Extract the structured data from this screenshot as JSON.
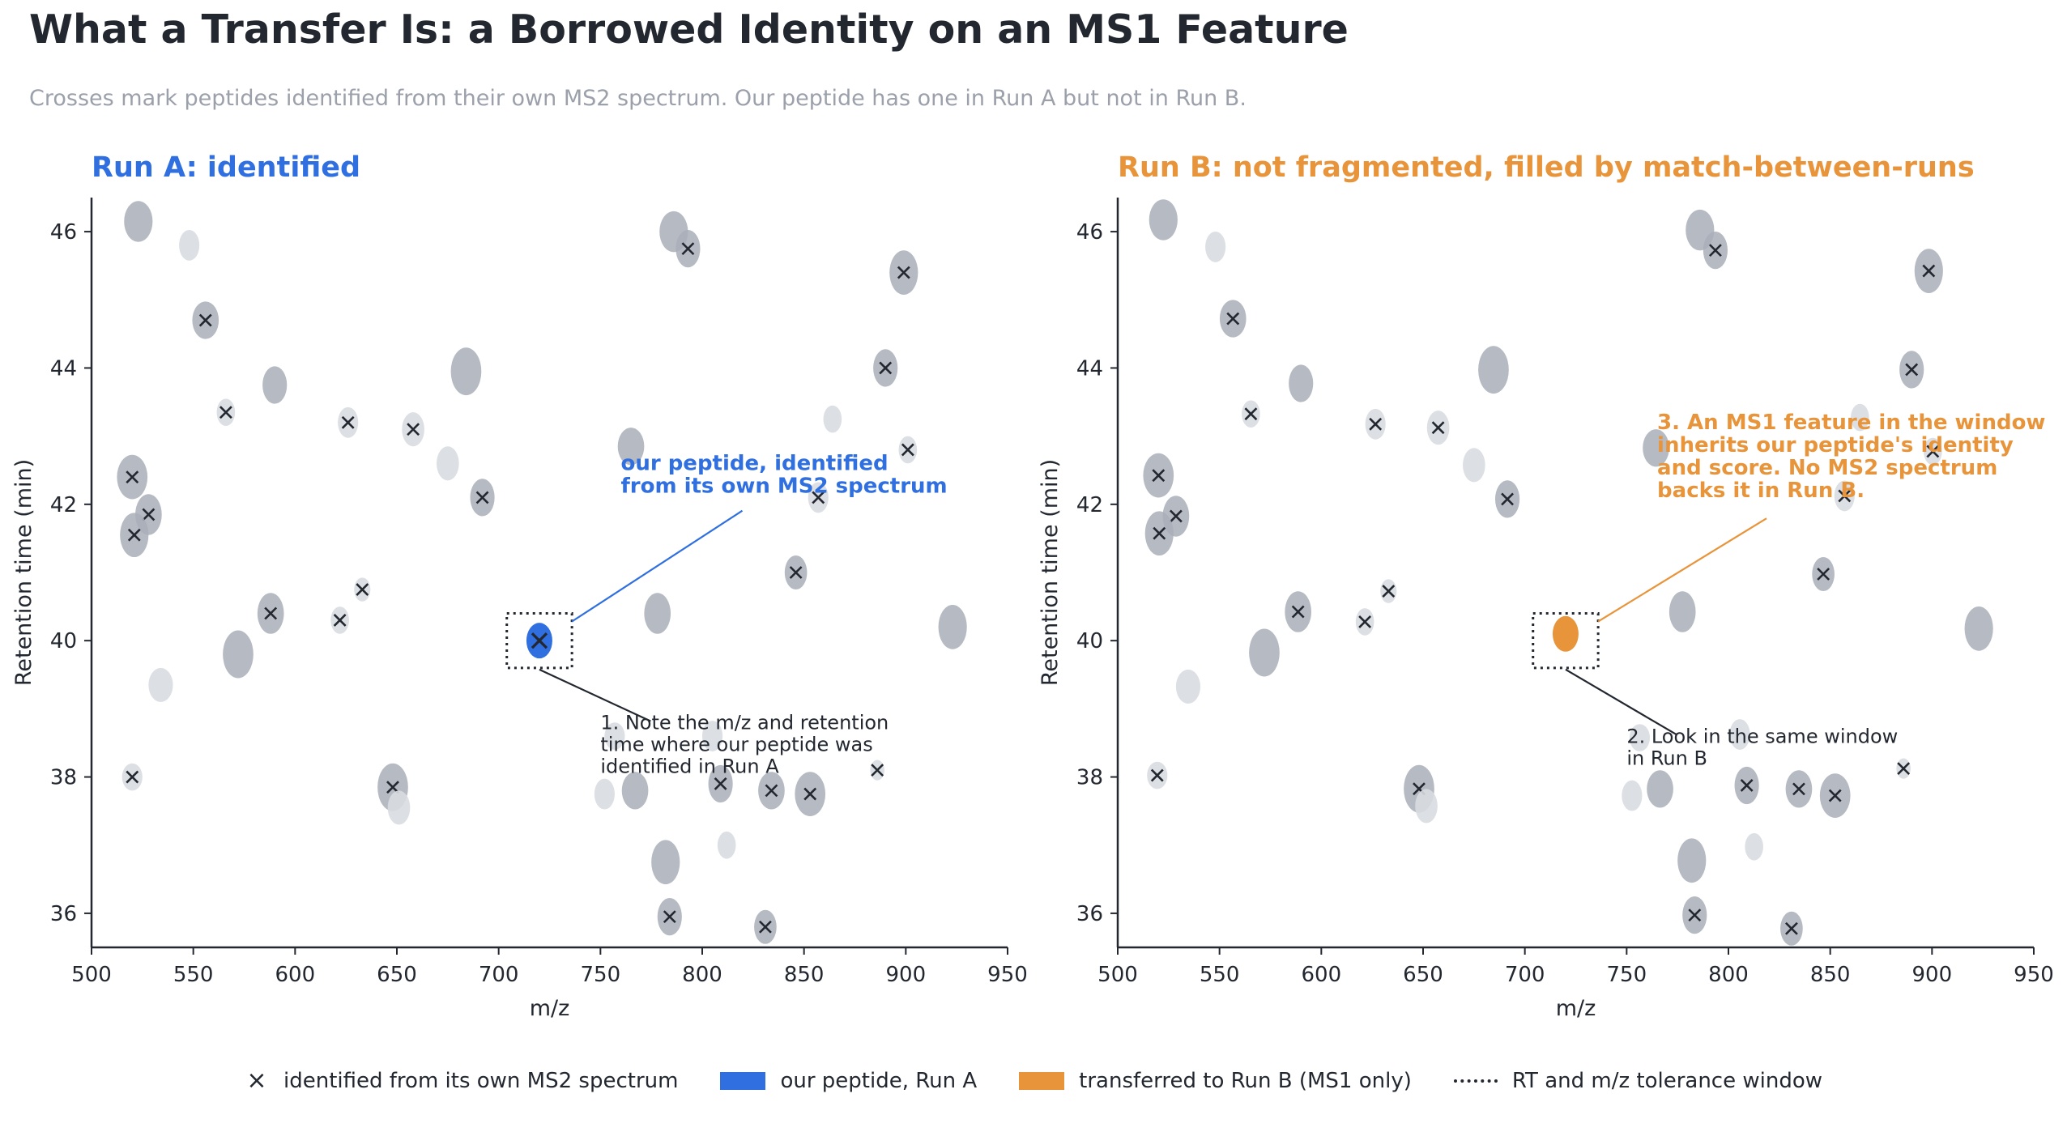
{
  "title": "What a Transfer Is: a Borrowed Identity on an MS1 Feature",
  "subtitle": "Crosses mark peptides identified from their own MS2 spectrum. Our peptide has one in Run A but not in Run B.",
  "colors": {
    "run_a": "#2f6fe0",
    "run_b": "#e8943a",
    "feature_dark": "#a9aeb8",
    "feature_light": "#d8dbe0",
    "cross": "#222730",
    "text": "#222730",
    "muted": "#9ba0aa"
  },
  "chart_data": [
    {
      "type": "scatter",
      "title": "Run A: identified",
      "xlabel": "m/z",
      "ylabel": "Retention time (min)",
      "xlim": [
        500,
        950
      ],
      "ylim": [
        35.5,
        46.5
      ],
      "xticks": [
        "500",
        "550",
        "600",
        "650",
        "700",
        "750",
        "800",
        "850",
        "900",
        "950"
      ],
      "yticks": [
        "36",
        "38",
        "40",
        "42",
        "44",
        "46"
      ],
      "target": {
        "mz": 720,
        "rt": 40.0,
        "state": "identified"
      },
      "window": {
        "mz": [
          704,
          736
        ],
        "rt": [
          39.6,
          40.4
        ]
      },
      "annotations": [
        {
          "text": "our peptide, identified\nfrom its own MS2 spectrum",
          "style": "accent",
          "at": {
            "mz": 760,
            "rt": 42.5
          }
        },
        {
          "text": "1. Note the m/z and retention\ntime where our peptide was\nidentified in Run A",
          "style": "plain",
          "at": {
            "mz": 750,
            "rt": 38.7
          }
        }
      ]
    },
    {
      "type": "scatter",
      "title": "Run B: not fragmented, filled by match-between-runs",
      "xlabel": "m/z",
      "ylabel": "Retention time (min)",
      "xlim": [
        500,
        950
      ],
      "ylim": [
        35.5,
        46.5
      ],
      "xticks": [
        "500",
        "550",
        "600",
        "650",
        "700",
        "750",
        "800",
        "850",
        "900",
        "950"
      ],
      "yticks": [
        "36",
        "38",
        "40",
        "42",
        "44",
        "46"
      ],
      "target": {
        "mz": 720,
        "rt": 40.1,
        "state": "transferred"
      },
      "window": {
        "mz": [
          704,
          736
        ],
        "rt": [
          39.6,
          40.4
        ]
      },
      "annotations": [
        {
          "text": "3. An MS1 feature in the window\ninherits our peptide's identity\nand score. No MS2 spectrum\nbacks it in Run B.",
          "style": "accent",
          "at": {
            "mz": 765,
            "rt": 43.1
          }
        },
        {
          "text": "2. Look in the same window\nin Run B",
          "style": "plain",
          "at": {
            "mz": 750,
            "rt": 38.5
          }
        }
      ]
    }
  ],
  "features": [
    {
      "mz": 523,
      "rt": 46.15,
      "dark": true,
      "x": false,
      "w": 14,
      "h": 0.6
    },
    {
      "mz": 548,
      "rt": 45.8,
      "dark": false,
      "x": false,
      "w": 10,
      "h": 0.45
    },
    {
      "mz": 556,
      "rt": 44.7,
      "dark": true,
      "x": true,
      "w": 13,
      "h": 0.55
    },
    {
      "mz": 566,
      "rt": 43.35,
      "dark": false,
      "x": true,
      "w": 9,
      "h": 0.4
    },
    {
      "mz": 590,
      "rt": 43.75,
      "dark": true,
      "x": false,
      "w": 12,
      "h": 0.55
    },
    {
      "mz": 626,
      "rt": 43.2,
      "dark": false,
      "x": true,
      "w": 10,
      "h": 0.45
    },
    {
      "mz": 658,
      "rt": 43.1,
      "dark": false,
      "x": true,
      "w": 11,
      "h": 0.5
    },
    {
      "mz": 675,
      "rt": 42.6,
      "dark": false,
      "x": false,
      "w": 11,
      "h": 0.5
    },
    {
      "mz": 684,
      "rt": 43.95,
      "dark": true,
      "x": false,
      "w": 15,
      "h": 0.7
    },
    {
      "mz": 692,
      "rt": 42.1,
      "dark": true,
      "x": true,
      "w": 12,
      "h": 0.55
    },
    {
      "mz": 520,
      "rt": 42.4,
      "dark": true,
      "x": true,
      "w": 15,
      "h": 0.65
    },
    {
      "mz": 528,
      "rt": 41.85,
      "dark": true,
      "x": true,
      "w": 13,
      "h": 0.6
    },
    {
      "mz": 521,
      "rt": 41.55,
      "dark": true,
      "x": true,
      "w": 14,
      "h": 0.65
    },
    {
      "mz": 633,
      "rt": 40.75,
      "dark": false,
      "x": true,
      "w": 8,
      "h": 0.35
    },
    {
      "mz": 588,
      "rt": 40.4,
      "dark": true,
      "x": true,
      "w": 13,
      "h": 0.6
    },
    {
      "mz": 622,
      "rt": 40.3,
      "dark": false,
      "x": true,
      "w": 9,
      "h": 0.4
    },
    {
      "mz": 572,
      "rt": 39.8,
      "dark": true,
      "x": false,
      "w": 15,
      "h": 0.7
    },
    {
      "mz": 534,
      "rt": 39.35,
      "dark": false,
      "x": false,
      "w": 12,
      "h": 0.5
    },
    {
      "mz": 520,
      "rt": 38.0,
      "dark": false,
      "x": true,
      "w": 10,
      "h": 0.4
    },
    {
      "mz": 648,
      "rt": 37.85,
      "dark": true,
      "x": true,
      "w": 15,
      "h": 0.7
    },
    {
      "mz": 651,
      "rt": 37.55,
      "dark": false,
      "x": false,
      "w": 11,
      "h": 0.5
    },
    {
      "mz": 765,
      "rt": 42.85,
      "dark": true,
      "x": false,
      "w": 13,
      "h": 0.55
    },
    {
      "mz": 786,
      "rt": 46.0,
      "dark": true,
      "x": false,
      "w": 14,
      "h": 0.6
    },
    {
      "mz": 793,
      "rt": 45.75,
      "dark": true,
      "x": true,
      "w": 12,
      "h": 0.55
    },
    {
      "mz": 899,
      "rt": 45.4,
      "dark": true,
      "x": true,
      "w": 14,
      "h": 0.65
    },
    {
      "mz": 890,
      "rt": 44.0,
      "dark": true,
      "x": true,
      "w": 12,
      "h": 0.55
    },
    {
      "mz": 864,
      "rt": 43.25,
      "dark": false,
      "x": false,
      "w": 9,
      "h": 0.4
    },
    {
      "mz": 901,
      "rt": 42.8,
      "dark": false,
      "x": true,
      "w": 9,
      "h": 0.4
    },
    {
      "mz": 857,
      "rt": 42.1,
      "dark": false,
      "x": true,
      "w": 10,
      "h": 0.45
    },
    {
      "mz": 846,
      "rt": 41.0,
      "dark": true,
      "x": true,
      "w": 11,
      "h": 0.5
    },
    {
      "mz": 778,
      "rt": 40.4,
      "dark": true,
      "x": false,
      "w": 13,
      "h": 0.6
    },
    {
      "mz": 923,
      "rt": 40.2,
      "dark": true,
      "x": false,
      "w": 14,
      "h": 0.65
    },
    {
      "mz": 805,
      "rt": 38.6,
      "dark": false,
      "x": false,
      "w": 10,
      "h": 0.45
    },
    {
      "mz": 757,
      "rt": 38.6,
      "dark": false,
      "x": false,
      "w": 10,
      "h": 0.4
    },
    {
      "mz": 886,
      "rt": 38.1,
      "dark": false,
      "x": true,
      "w": 7,
      "h": 0.3
    },
    {
      "mz": 752,
      "rt": 37.75,
      "dark": false,
      "x": false,
      "w": 10,
      "h": 0.45
    },
    {
      "mz": 767,
      "rt": 37.8,
      "dark": true,
      "x": false,
      "w": 13,
      "h": 0.55
    },
    {
      "mz": 809,
      "rt": 37.9,
      "dark": true,
      "x": true,
      "w": 12,
      "h": 0.55
    },
    {
      "mz": 834,
      "rt": 37.8,
      "dark": true,
      "x": true,
      "w": 13,
      "h": 0.55
    },
    {
      "mz": 853,
      "rt": 37.75,
      "dark": true,
      "x": true,
      "w": 15,
      "h": 0.65
    },
    {
      "mz": 782,
      "rt": 36.75,
      "dark": true,
      "x": false,
      "w": 14,
      "h": 0.65
    },
    {
      "mz": 812,
      "rt": 37.0,
      "dark": false,
      "x": false,
      "w": 9,
      "h": 0.4
    },
    {
      "mz": 784,
      "rt": 35.95,
      "dark": true,
      "x": true,
      "w": 12,
      "h": 0.55
    },
    {
      "mz": 831,
      "rt": 35.8,
      "dark": true,
      "x": true,
      "w": 11,
      "h": 0.5
    }
  ],
  "legend": {
    "cross_symbol": "×",
    "items": [
      {
        "label": "identified from its own MS2 spectrum",
        "kind": "cross"
      },
      {
        "label": "our peptide, Run A",
        "kind": "patch-a"
      },
      {
        "label": "transferred to Run B (MS1 only)",
        "kind": "patch-b"
      },
      {
        "label": "RT and m/z tolerance window",
        "kind": "dots"
      }
    ]
  }
}
